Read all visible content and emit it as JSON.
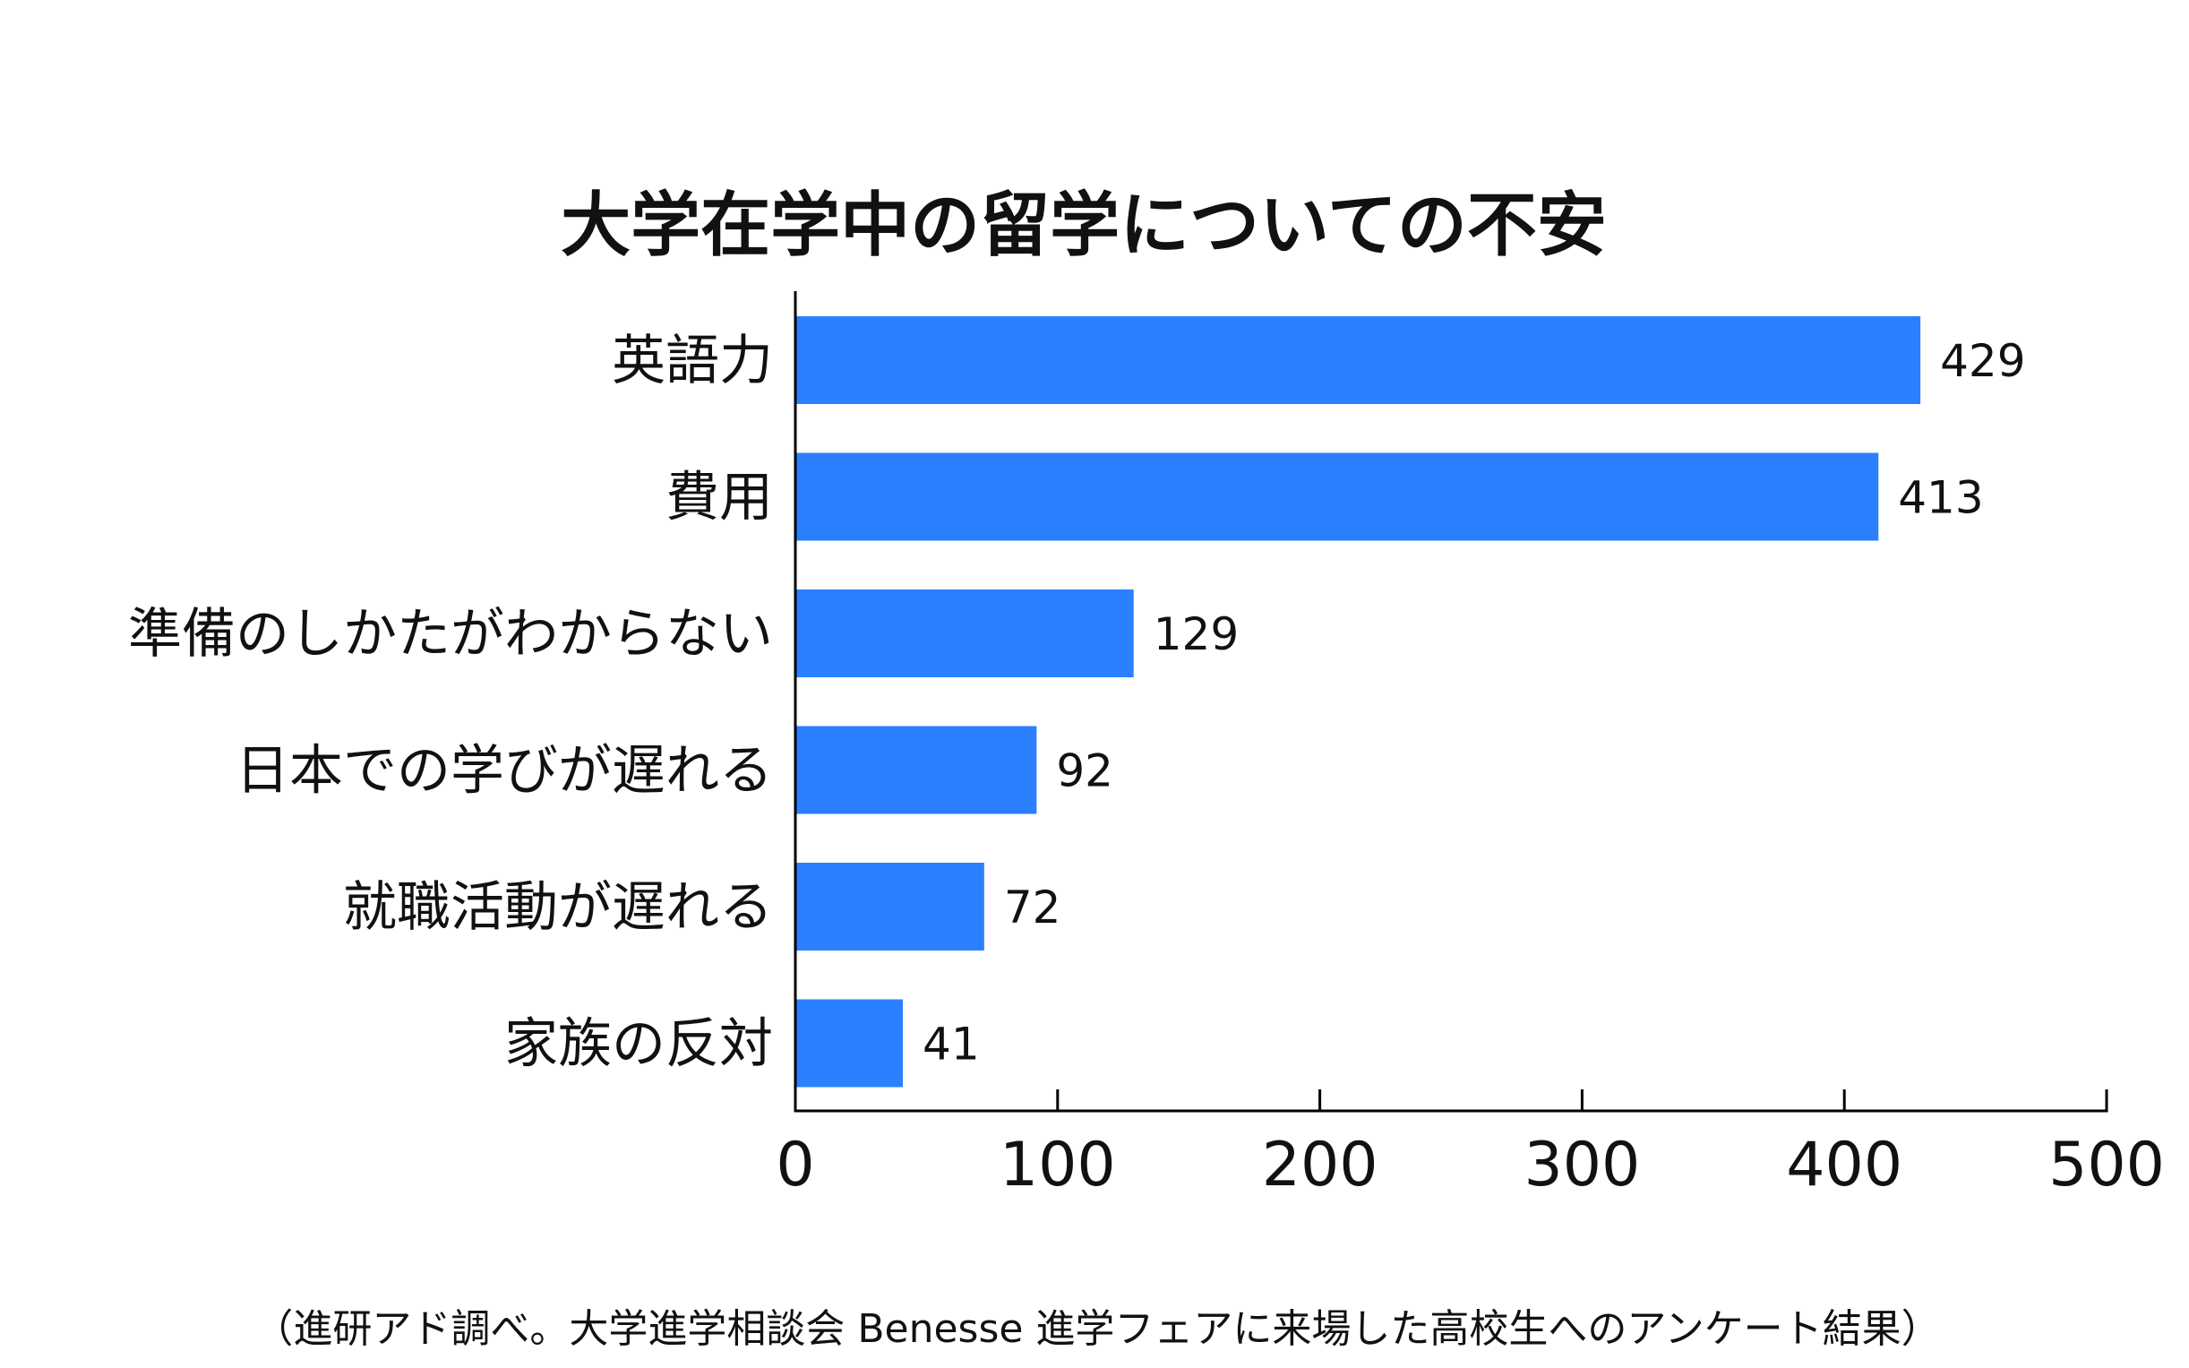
{
  "chart_data": {
    "type": "bar",
    "orientation": "horizontal",
    "title": "大学在学中の留学についての不安",
    "categories": [
      "英語力",
      "費用",
      "準備のしかたがわからない",
      "日本での学びが遅れる",
      "就職活動が遅れる",
      "家族の反対"
    ],
    "values": [
      429,
      413,
      129,
      92,
      72,
      41
    ],
    "value_labels": [
      "429",
      "413",
      "129",
      "92",
      "72",
      "41"
    ],
    "xlabel": "",
    "ylabel": "",
    "xlim": [
      0,
      500
    ],
    "ticks": [
      0,
      100,
      200,
      300,
      400,
      500
    ],
    "tick_labels": [
      "0",
      "100",
      "200",
      "300",
      "400",
      "500"
    ],
    "bar_color": "#2a80ff",
    "grid": false,
    "legend": "none",
    "note": "（進研アド調べ。大学進学相談会 Benesse 進学フェアに来場した高校生へのアンケート結果）"
  }
}
